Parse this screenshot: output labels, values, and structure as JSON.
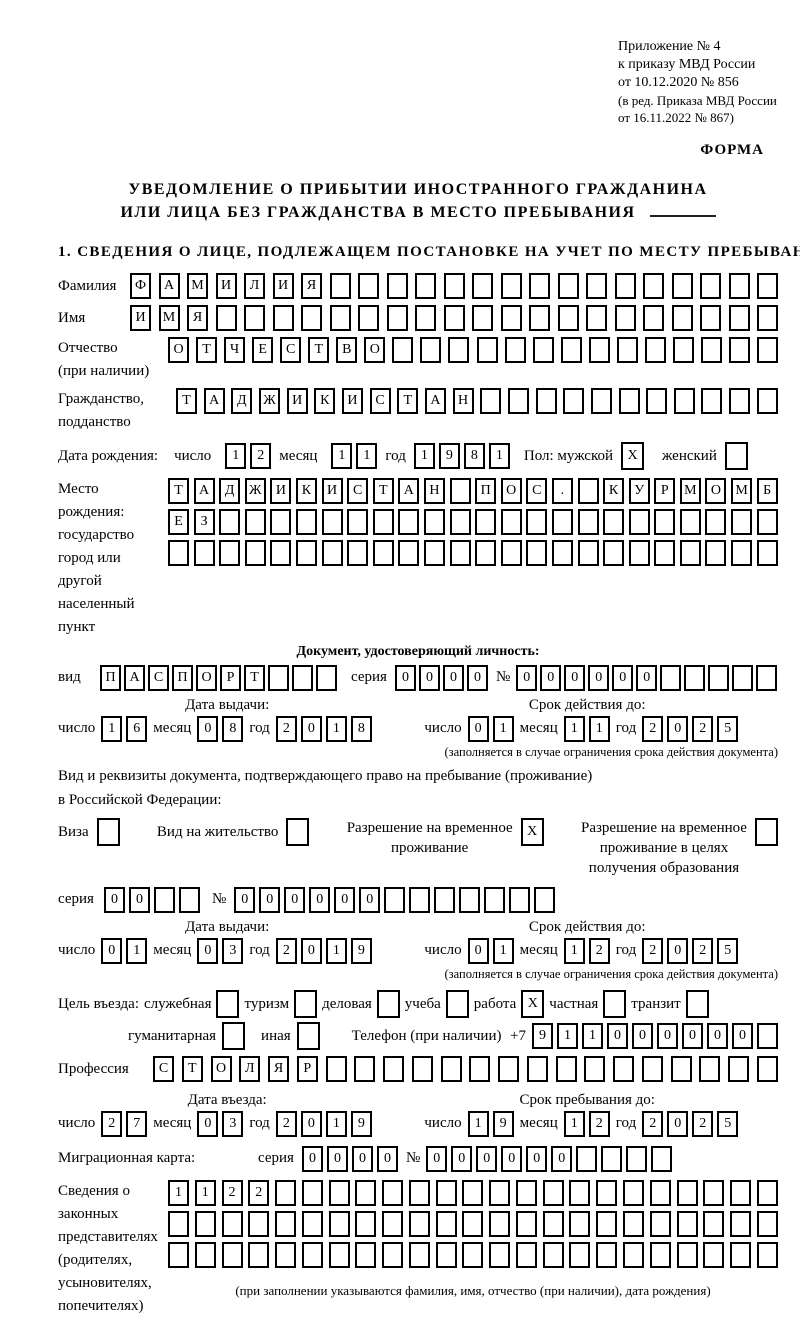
{
  "appendix": {
    "line1": "Приложение № 4",
    "line2": "к приказу МВД России",
    "line3": "от 10.12.2020 № 856",
    "line4": "(в ред. Приказа МВД России",
    "line5": "от 16.11.2022 № 867)",
    "forma": "ФОРМА"
  },
  "title": {
    "line1": "УВЕДОМЛЕНИЕ О ПРИБЫТИИ ИНОСТРАННОГО ГРАЖДАНИНА",
    "line2": "ИЛИ ЛИЦА БЕЗ ГРАЖДАНСТВА В МЕСТО ПРЕБЫВАНИЯ"
  },
  "section1": {
    "heading": "1. СВЕДЕНИЯ О ЛИЦЕ, ПОДЛЕЖАЩЕМ ПОСТАНОВКЕ НА УЧЕТ ПО МЕСТУ ПРЕБЫВАНИЯ"
  },
  "labels": {
    "surname": "Фамилия",
    "given_name": "Имя",
    "patronymic": "Отчество",
    "patronymic2": "(при наличии)",
    "citizenship": "Гражданство,",
    "citizenship2": "подданство",
    "birth_date": "Дата рождения:",
    "day": "число",
    "month": "месяц",
    "year": "год",
    "sex_male": "Пол: мужской",
    "sex_female": "женский",
    "birth_place": "Место рождения:",
    "birth_place2": "государство",
    "birth_place3": "город или другой",
    "birth_place4": "населенный пункт",
    "identity_doc_heading": "Документ, удостоверяющий личность:",
    "doc_type": "вид",
    "series": "серия",
    "number": "№",
    "issue_date": "Дата выдачи:",
    "valid_until": "Срок действия до:",
    "validity_note": "(заполняется в случае ограничения срока действия документа)",
    "residence_doc1": "Вид и реквизиты документа, подтверждающего право на пребывание (проживание)",
    "residence_doc2": "в Российской Федерации:",
    "visa": "Виза",
    "residence_permit": "Вид на жительство",
    "temp_residence1": "Разрешение на временное",
    "temp_residence2": "проживание",
    "temp_edu1": "Разрешение на временное",
    "temp_edu2": "проживание в целях",
    "temp_edu3": "получения образования",
    "purpose": "Цель въезда:",
    "official": "служебная",
    "tourism": "туризм",
    "business": "деловая",
    "study": "учеба",
    "work": "работа",
    "private": "частная",
    "transit": "транзит",
    "humanitarian": "гуманитарная",
    "other": "иная",
    "phone": "Телефон (при наличии)",
    "phone_prefix": "+7",
    "profession": "Профессия",
    "entry_date": "Дата въезда:",
    "stay_until": "Срок пребывания до:",
    "migration_card": "Миграционная карта:",
    "rep1": "Сведения о",
    "rep2": "законных",
    "rep3": "представителях",
    "rep4": "(родителях,",
    "rep5": "усыновителях,",
    "rep6": "попечителях)",
    "rep_note": "(при заполнении указываются фамилия, имя, отчество (при наличии), дата рождения)"
  },
  "cells": {
    "surname": {
      "v": "ФАМИЛИЯ",
      "n": 23
    },
    "given_name": {
      "v": "ИМЯ",
      "n": 23
    },
    "patronymic": {
      "v": "ОТЧЕСТВО",
      "n": 22
    },
    "citizenship": {
      "v": "ТАДЖИКИСТАН",
      "n": 22
    },
    "birth_day": {
      "v": "12",
      "n": 2
    },
    "birth_month": {
      "v": "11",
      "n": 2
    },
    "birth_year": {
      "v": "1981",
      "n": 4
    },
    "sex_male": {
      "v": "X",
      "n": 1
    },
    "sex_female": {
      "v": "",
      "n": 1
    },
    "birth_place_row1": {
      "v": "ТАДЖИКИСТАН ПОС. КУРМОМБ",
      "n": 24
    },
    "birth_place_row2": {
      "v": "ЕЗ",
      "n": 24
    },
    "birth_place_row3": {
      "v": "",
      "n": 24
    },
    "doc_type": {
      "v": "ПАСПОРТ",
      "n": 10
    },
    "doc_series": {
      "v": "0000",
      "n": 4
    },
    "doc_number": {
      "v": "000000",
      "n": 11
    },
    "doc_issue_day": {
      "v": "16",
      "n": 2
    },
    "doc_issue_month": {
      "v": "08",
      "n": 2
    },
    "doc_issue_year": {
      "v": "2018",
      "n": 4
    },
    "doc_valid_day": {
      "v": "01",
      "n": 2
    },
    "doc_valid_month": {
      "v": "11",
      "n": 2
    },
    "doc_valid_year": {
      "v": "2025",
      "n": 4
    },
    "visa": {
      "v": "",
      "n": 1
    },
    "residence_permit": {
      "v": "",
      "n": 1
    },
    "temp_residence": {
      "v": "X",
      "n": 1
    },
    "temp_edu": {
      "v": "",
      "n": 1
    },
    "permit_series": {
      "v": "00",
      "n": 4
    },
    "permit_number": {
      "v": "000000",
      "n": 13
    },
    "permit_issue_day": {
      "v": "01",
      "n": 2
    },
    "permit_issue_month": {
      "v": "03",
      "n": 2
    },
    "permit_issue_year": {
      "v": "2019",
      "n": 4
    },
    "permit_valid_day": {
      "v": "01",
      "n": 2
    },
    "permit_valid_month": {
      "v": "12",
      "n": 2
    },
    "permit_valid_year": {
      "v": "2025",
      "n": 4
    },
    "purpose_official": {
      "v": "",
      "n": 1
    },
    "purpose_tourism": {
      "v": "",
      "n": 1
    },
    "purpose_business": {
      "v": "",
      "n": 1
    },
    "purpose_study": {
      "v": "",
      "n": 1
    },
    "purpose_work": {
      "v": "X",
      "n": 1
    },
    "purpose_private": {
      "v": "",
      "n": 1
    },
    "purpose_transit": {
      "v": "",
      "n": 1
    },
    "purpose_humanitarian": {
      "v": "",
      "n": 1
    },
    "purpose_other": {
      "v": "",
      "n": 1
    },
    "phone": {
      "v": "911000000",
      "n": 10
    },
    "profession": {
      "v": "СТОЛЯР",
      "n": 22
    },
    "entry_day": {
      "v": "27",
      "n": 2
    },
    "entry_month": {
      "v": "03",
      "n": 2
    },
    "entry_year": {
      "v": "2019",
      "n": 4
    },
    "stay_day": {
      "v": "19",
      "n": 2
    },
    "stay_month": {
      "v": "12",
      "n": 2
    },
    "stay_year": {
      "v": "2025",
      "n": 4
    },
    "mig_series": {
      "v": "0000",
      "n": 4
    },
    "mig_number": {
      "v": "000000",
      "n": 10
    },
    "rep_row1": {
      "v": "1122",
      "n": 23
    },
    "rep_row2": {
      "v": "",
      "n": 23
    },
    "rep_row3": {
      "v": "",
      "n": 23
    }
  }
}
